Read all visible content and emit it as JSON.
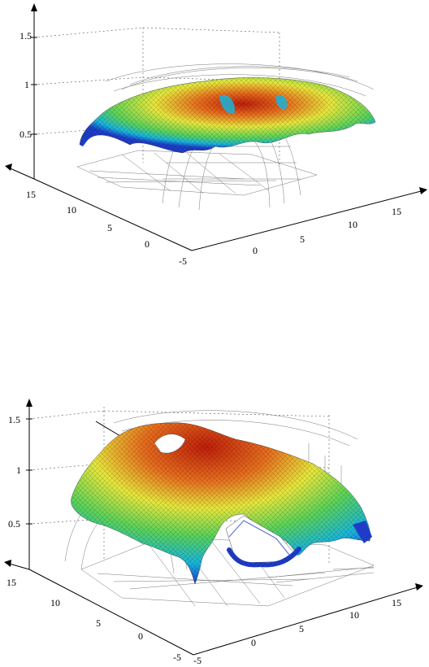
{
  "chart_data": [
    {
      "type": "surface",
      "xlabel": "",
      "ylabel": "",
      "zlabel": "",
      "x_ticks": [
        "0",
        "5",
        "10",
        "15"
      ],
      "y_ticks": [
        "-5",
        "0",
        "5",
        "10",
        "15"
      ],
      "z_ticks": [
        "0.5",
        "1",
        "1.5"
      ],
      "zlim": [
        0,
        1.7
      ],
      "grid": true,
      "colormap": [
        "#1e3cc8",
        "#18b4dc",
        "#5ad25a",
        "#e6e63c",
        "#e66e1e",
        "#be1e0a"
      ],
      "surface_peak_z": 1.05
    },
    {
      "type": "surface",
      "xlabel": "",
      "ylabel": "",
      "zlabel": "",
      "x_ticks": [
        "-5",
        "0",
        "5",
        "10",
        "15"
      ],
      "y_ticks": [
        "-5",
        "0",
        "5",
        "10",
        "15"
      ],
      "z_ticks": [
        "0.5",
        "1",
        "1.5"
      ],
      "zlim": [
        0,
        1.6
      ],
      "grid": true,
      "colormap": [
        "#1e3cc8",
        "#18b4dc",
        "#5ad25a",
        "#e6e63c",
        "#e66e1e",
        "#be1e0a"
      ],
      "surface_peak_z": 1.5
    }
  ]
}
